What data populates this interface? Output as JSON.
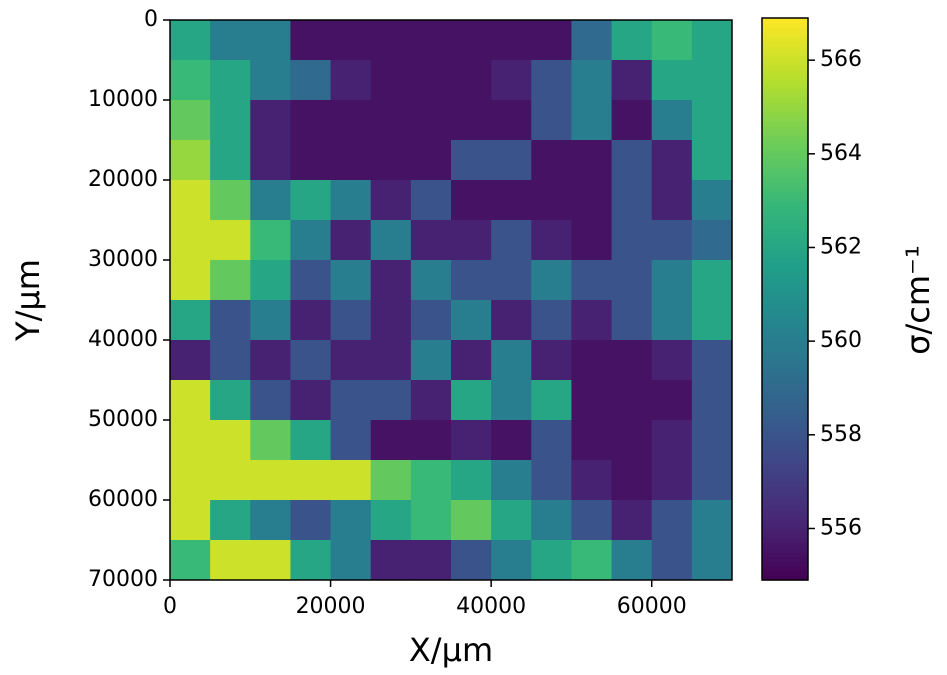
{
  "chart_data": {
    "type": "heatmap",
    "xlabel": "X/µm",
    "ylabel": "Y/µm",
    "colorbar_label": "σ/cm⁻¹",
    "xlim": [
      0,
      70000
    ],
    "ylim": [
      70000,
      0
    ],
    "xticks": [
      0,
      20000,
      40000,
      60000
    ],
    "yticks": [
      0,
      10000,
      20000,
      30000,
      40000,
      50000,
      60000,
      70000
    ],
    "clim": [
      554.9,
      566.9
    ],
    "cticks": [
      556,
      558,
      560,
      562,
      564,
      566
    ],
    "colormap": "viridis",
    "z": [
      [
        562,
        560,
        560,
        555.5,
        555.5,
        555.5,
        555.5,
        555.5,
        555.5,
        555.5,
        559,
        562,
        563,
        562
      ],
      [
        563,
        562,
        560,
        559,
        556,
        555.5,
        555.5,
        555.5,
        556,
        558,
        560,
        556,
        562,
        562
      ],
      [
        564,
        562,
        556,
        555.5,
        555.5,
        555.5,
        555.5,
        555.5,
        555.5,
        558,
        560,
        555.5,
        560,
        562
      ],
      [
        565,
        562,
        556,
        555.5,
        555.5,
        555.5,
        555.5,
        558,
        558,
        555.5,
        555.5,
        558,
        556,
        562
      ],
      [
        566,
        564,
        560,
        562,
        560,
        556,
        558,
        555.5,
        555.5,
        555.5,
        555.5,
        558,
        556,
        560
      ],
      [
        566,
        566,
        563,
        560,
        556,
        560,
        556,
        556,
        558,
        556,
        555.5,
        558,
        558,
        559
      ],
      [
        566,
        564,
        562,
        558,
        560,
        556,
        560,
        558,
        558,
        560,
        558,
        558,
        560,
        562
      ],
      [
        562,
        558,
        560,
        556,
        558,
        556,
        558,
        560,
        556,
        558,
        556,
        558,
        560,
        562
      ],
      [
        556,
        558,
        556,
        558,
        556,
        556,
        560,
        556,
        560,
        556,
        555.5,
        555.5,
        556,
        558
      ],
      [
        566,
        562,
        558,
        556,
        558,
        558,
        556,
        562,
        560,
        562,
        555.5,
        555.5,
        555.5,
        558
      ],
      [
        566,
        566,
        564,
        562,
        558,
        555.5,
        555.5,
        556,
        555.5,
        558,
        555.5,
        555.5,
        556,
        558
      ],
      [
        566,
        566,
        566,
        566,
        566,
        564,
        563,
        562,
        560,
        558,
        556,
        555.5,
        556,
        558
      ],
      [
        566,
        562,
        560,
        558,
        560,
        562,
        563,
        564,
        562,
        560,
        558,
        556,
        558,
        560
      ],
      [
        563,
        566,
        566,
        562,
        560,
        556,
        556,
        558,
        560,
        562,
        563,
        560,
        558,
        560
      ]
    ]
  }
}
